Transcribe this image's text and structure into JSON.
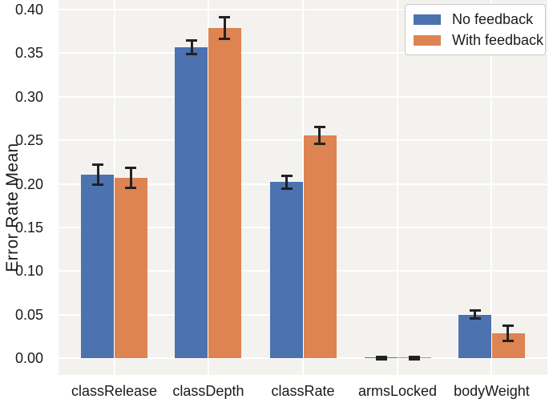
{
  "chart_data": {
    "type": "bar",
    "title": "",
    "ylabel": "Error Rate Mean",
    "xlabel": "",
    "categories": [
      "classRelease",
      "classDepth",
      "classRate",
      "armsLocked",
      "bodyWeight"
    ],
    "series": [
      {
        "name": "No feedback",
        "color": "#4C72B0",
        "values": [
          0.211,
          0.357,
          0.202,
          0.001,
          0.05
        ],
        "errors": [
          0.013,
          0.009,
          0.009,
          0.002,
          0.006
        ]
      },
      {
        "name": "With feedback",
        "color": "#DD8452",
        "values": [
          0.207,
          0.379,
          0.256,
          0.001,
          0.029
        ],
        "errors": [
          0.013,
          0.014,
          0.011,
          0.002,
          0.01
        ]
      }
    ],
    "ylim": [
      -0.019,
      0.411
    ],
    "yticks": [
      {
        "v": 0.0,
        "label": "0.00"
      },
      {
        "v": 0.05,
        "label": "0.05"
      },
      {
        "v": 0.1,
        "label": "0.10"
      },
      {
        "v": 0.15,
        "label": "0.15"
      },
      {
        "v": 0.2,
        "label": "0.20"
      },
      {
        "v": 0.25,
        "label": "0.25"
      },
      {
        "v": 0.3,
        "label": "0.30"
      },
      {
        "v": 0.35,
        "label": "0.35"
      },
      {
        "v": 0.4,
        "label": "0.40"
      }
    ],
    "grid": true,
    "legend_position": "upper right",
    "colors": {
      "plot_bg": "#F3F2EF",
      "gridline": "#FFFFFF",
      "text": "#1A1A1A",
      "error_bar": "#222222",
      "legend_border": "#C8C8C8",
      "legend_bg": "#FFFFFF"
    }
  }
}
